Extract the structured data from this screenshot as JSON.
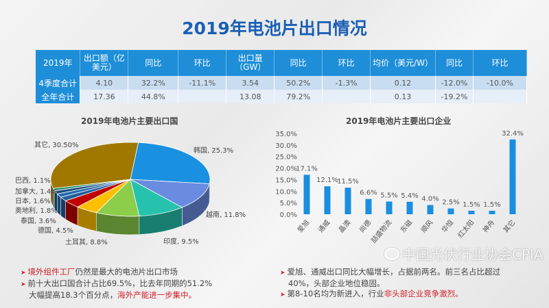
{
  "title": "2019年电池片出口情况",
  "table": {
    "headers": [
      "2019年",
      "出口额（亿美元）",
      "同比",
      "环比",
      "出口量（GW）",
      "同比",
      "环比",
      "均价（美元/W）",
      "同比",
      "环比"
    ],
    "rows": [
      [
        "4季度合计",
        "4.10",
        "32.2%",
        "-11.1%",
        "3.54",
        "50.2%",
        "-1.3%",
        "0.12",
        "-12.0%",
        "-10.0%"
      ],
      [
        "全年合计",
        "17.36",
        "44.8%",
        "",
        "13.08",
        "79.2%",
        "",
        "0.13",
        "-19.2%",
        ""
      ]
    ]
  },
  "chart_data": [
    {
      "type": "pie",
      "title": "2019年电池片主要出口国",
      "labels": [
        "韩国, 25.3%",
        "越南, 11.8%",
        "印度, 9.5%",
        "土耳其, 8.8%",
        "德国, 4.5%",
        "泰国, 3.6%",
        "奥地利, 1.8%",
        "日本, 1.6%",
        "加拿大, 1.4%",
        "巴西, 1.1%",
        "其它, 30.50%"
      ],
      "categories": [
        "韩国",
        "越南",
        "印度",
        "土耳其",
        "德国",
        "泰国",
        "奥地利",
        "日本",
        "加拿大",
        "巴西",
        "其它"
      ],
      "values": [
        25.3,
        11.8,
        9.5,
        8.8,
        4.5,
        3.6,
        1.8,
        1.6,
        1.4,
        1.1,
        30.5
      ],
      "colors": [
        "#1a90e0",
        "#6a8ce0",
        "#27c2ad",
        "#8ccd4a",
        "#ffc000",
        "#c00000",
        "#1f5f9c",
        "#2b6cb0",
        "#1a4f80",
        "#2e8b6a",
        "#a07800"
      ]
    },
    {
      "type": "bar",
      "title": "2019年电池片主要出口企业",
      "categories": [
        "爱旭",
        "通威",
        "晶澳",
        "尚德",
        "喆盛物流",
        "东磁",
        "顺风",
        "华恒",
        "红太阳",
        "神舟",
        "其它"
      ],
      "values": [
        17.1,
        12.1,
        11.5,
        6.6,
        5.5,
        5.4,
        4.0,
        2.5,
        1.5,
        1.5,
        32.4
      ],
      "labels": [
        "17.1%",
        "12.1%",
        "11.5%",
        "6.6%",
        "5.5%",
        "5.4%",
        "4.0%",
        "2.5%",
        "1.5%",
        "1.5%",
        "32.4%"
      ],
      "yticks": [
        "0.0%",
        "5.0%",
        "10.0%",
        "15.0%",
        "20.0%",
        "25.0%",
        "30.0%",
        "35.0%"
      ],
      "ylim": [
        0,
        35
      ],
      "color": "#1a8ee0"
    }
  ],
  "bullets_left": [
    {
      "red": "境外组件工厂",
      "text": "仍然是最大的电池片出口市场"
    },
    {
      "text": "前十大出口国合计占比69.5%，比去年同期的51.2%"
    },
    {
      "text": "大幅提高18.3个百分点，",
      "red": "海外产能进一步集中。"
    }
  ],
  "bullets_right": [
    {
      "text": "爱旭、通威出口同比大幅增长，占据前两名。前三名占比超过"
    },
    {
      "text": "40%，头部企业地位稳固。"
    },
    {
      "text": "第8-10名均为新进入，行业",
      "red": "非头部企业竞争激烈。"
    }
  ],
  "watermark": "中国光伏行业协会CPIA"
}
